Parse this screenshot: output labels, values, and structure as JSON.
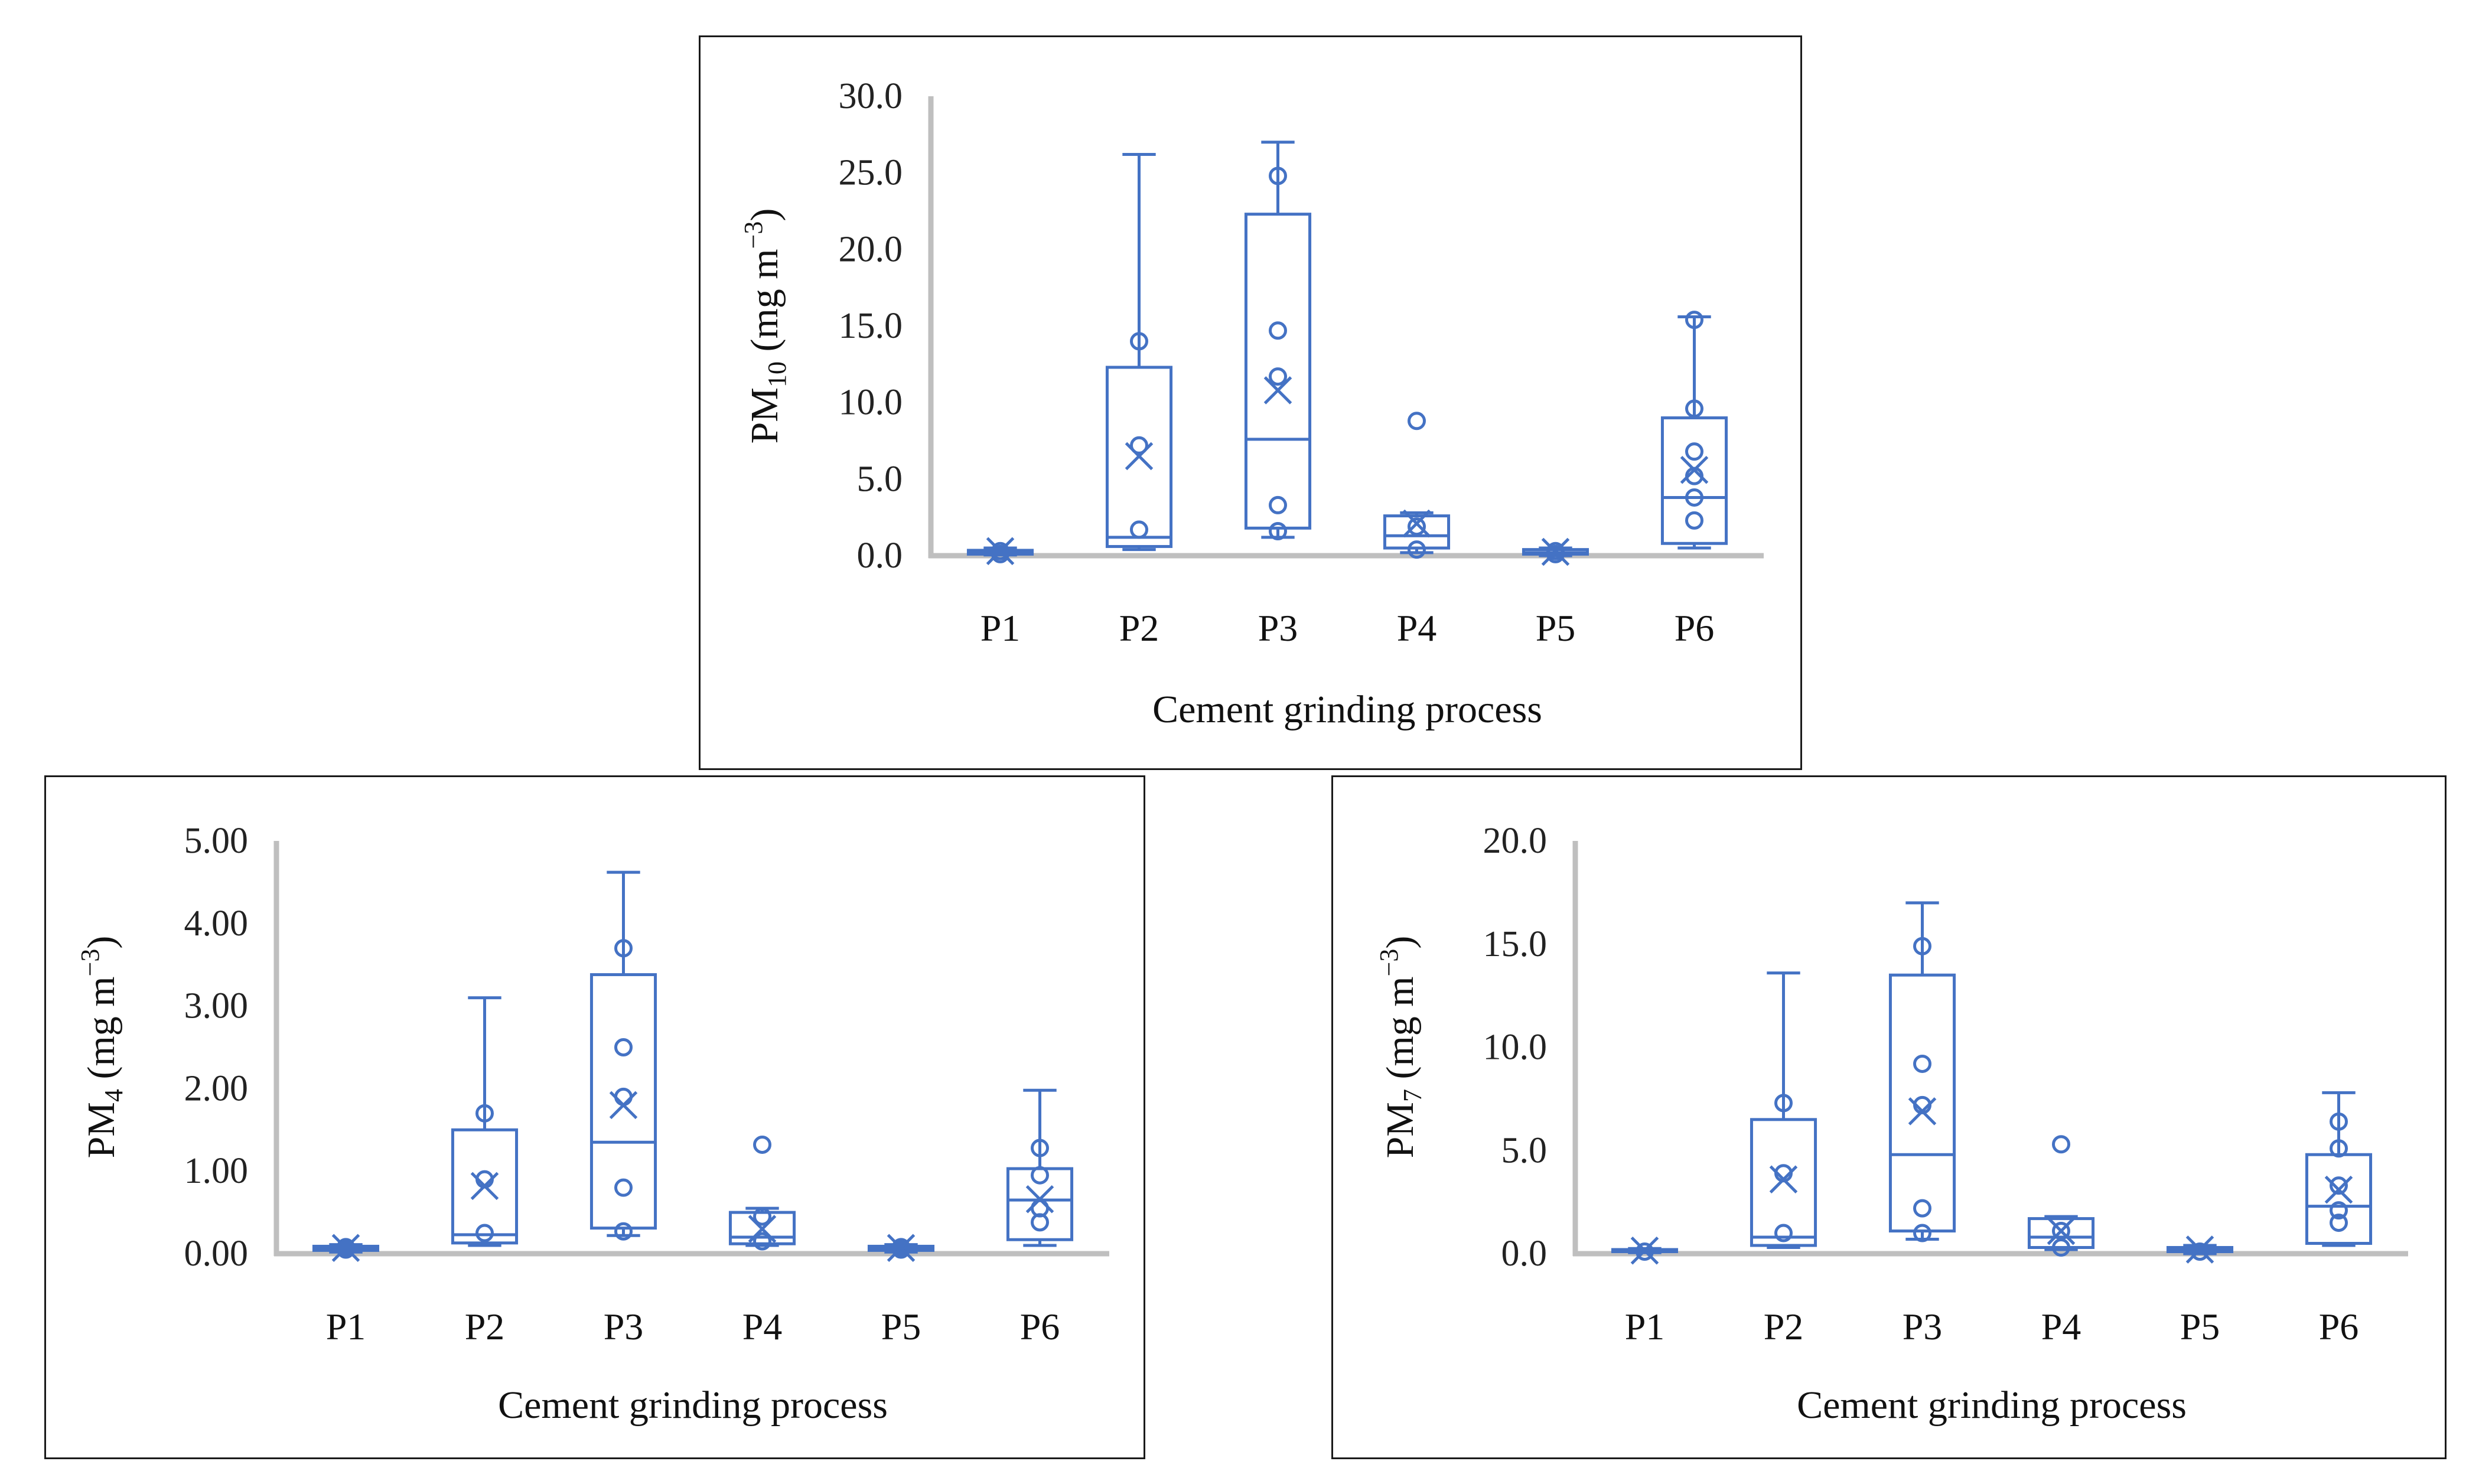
{
  "chart_data": [
    {
      "type": "box",
      "id": "pm10",
      "y_title": {
        "base": "PM",
        "sub": "10",
        "units_prefix": " (mg m",
        "units_exp": "−3",
        "units_suffix": ")"
      },
      "x_title": "Cement grinding process",
      "categories": [
        "P1",
        "P2",
        "P3",
        "P4",
        "P5",
        "P6"
      ],
      "ylim": [
        0,
        30
      ],
      "yticks": [
        0,
        5,
        10,
        15,
        20,
        25,
        30
      ],
      "ytick_labels": [
        "0.0",
        "5.0",
        "10.0",
        "15.0",
        "20.0",
        "25.0",
        "30.0"
      ],
      "color": "#4472c4",
      "boxes": [
        {
          "min": 0.05,
          "q1": 0.1,
          "median": 0.2,
          "q3": 0.35,
          "max": 0.5,
          "mean": 0.3,
          "points": [
            0.1,
            0.3
          ]
        },
        {
          "min": 0.4,
          "q1": 0.6,
          "median": 1.2,
          "q3": 12.3,
          "max": 26.2,
          "mean": 6.5,
          "points": [
            1.7,
            7.2,
            14.0
          ]
        },
        {
          "min": 1.2,
          "q1": 1.8,
          "median": 7.6,
          "q3": 22.3,
          "max": 27.0,
          "mean": 10.8,
          "points": [
            1.6,
            3.3,
            11.7,
            14.7,
            24.8
          ]
        },
        {
          "min": 0.2,
          "q1": 0.5,
          "median": 1.3,
          "q3": 2.6,
          "max": 2.8,
          "mean": 2.1,
          "points": [
            0.4,
            1.9,
            8.8
          ]
        },
        {
          "min": 0.0,
          "q1": 0.1,
          "median": 0.2,
          "q3": 0.4,
          "max": 0.5,
          "mean": 0.25,
          "points": [
            0.1,
            0.3
          ]
        },
        {
          "min": 0.5,
          "q1": 0.8,
          "median": 3.8,
          "q3": 9.0,
          "max": 15.6,
          "mean": 5.6,
          "points": [
            2.3,
            3.8,
            5.2,
            6.8,
            9.6,
            15.4
          ]
        }
      ]
    },
    {
      "type": "box",
      "id": "pm4",
      "y_title": {
        "base": "PM",
        "sub": "4",
        "units_prefix": " (mg m",
        "units_exp": "−3",
        "units_suffix": ")"
      },
      "x_title": "Cement grinding process",
      "categories": [
        "P1",
        "P2",
        "P3",
        "P4",
        "P5",
        "P6"
      ],
      "ylim": [
        0,
        5
      ],
      "yticks": [
        0,
        1,
        2,
        3,
        4,
        5
      ],
      "ytick_labels": [
        "0.00",
        "1.00",
        "2.00",
        "3.00",
        "4.00",
        "5.00"
      ],
      "color": "#4472c4",
      "boxes": [
        {
          "min": 0.02,
          "q1": 0.04,
          "median": 0.06,
          "q3": 0.09,
          "max": 0.11,
          "mean": 0.07,
          "points": [
            0.05,
            0.08
          ]
        },
        {
          "min": 0.1,
          "q1": 0.13,
          "median": 0.23,
          "q3": 1.5,
          "max": 3.1,
          "mean": 0.82,
          "points": [
            0.25,
            0.9,
            1.7
          ]
        },
        {
          "min": 0.22,
          "q1": 0.31,
          "median": 1.35,
          "q3": 3.38,
          "max": 4.62,
          "mean": 1.8,
          "points": [
            0.27,
            0.8,
            1.9,
            2.5,
            3.7
          ]
        },
        {
          "min": 0.1,
          "q1": 0.12,
          "median": 0.2,
          "q3": 0.5,
          "max": 0.55,
          "mean": 0.3,
          "points": [
            0.15,
            0.45,
            1.32
          ]
        },
        {
          "min": 0.02,
          "q1": 0.04,
          "median": 0.06,
          "q3": 0.09,
          "max": 0.11,
          "mean": 0.07,
          "points": [
            0.05,
            0.08
          ]
        },
        {
          "min": 0.1,
          "q1": 0.17,
          "median": 0.65,
          "q3": 1.03,
          "max": 1.98,
          "mean": 0.66,
          "points": [
            0.38,
            0.55,
            0.95,
            1.28
          ]
        }
      ]
    },
    {
      "type": "box",
      "id": "pm7",
      "y_title": {
        "base": "PM",
        "sub": "7",
        "units_prefix": " (mg m",
        "units_exp": "−3",
        "units_suffix": ")"
      },
      "x_title": "Cement grinding process",
      "categories": [
        "P1",
        "P2",
        "P3",
        "P4",
        "P5",
        "P6"
      ],
      "ylim": [
        0,
        20
      ],
      "yticks": [
        0,
        5,
        10,
        15,
        20
      ],
      "ytick_labels": [
        "0.0",
        "5.0",
        "10.0",
        "15.0",
        "20.0"
      ],
      "color": "#4472c4",
      "boxes": [
        {
          "min": 0.05,
          "q1": 0.1,
          "median": 0.15,
          "q3": 0.2,
          "max": 0.25,
          "mean": 0.15,
          "points": [
            0.1
          ]
        },
        {
          "min": 0.3,
          "q1": 0.4,
          "median": 0.8,
          "q3": 6.5,
          "max": 13.6,
          "mean": 3.6,
          "points": [
            1.0,
            3.9,
            7.3
          ]
        },
        {
          "min": 0.7,
          "q1": 1.1,
          "median": 4.8,
          "q3": 13.5,
          "max": 17.0,
          "mean": 6.9,
          "points": [
            1.0,
            2.2,
            7.2,
            9.2,
            14.9
          ]
        },
        {
          "min": 0.2,
          "q1": 0.3,
          "median": 0.8,
          "q3": 1.7,
          "max": 1.8,
          "mean": 1.1,
          "points": [
            0.3,
            1.1,
            5.3
          ]
        },
        {
          "min": 0.0,
          "q1": 0.1,
          "median": 0.2,
          "q3": 0.3,
          "max": 0.4,
          "mean": 0.2,
          "points": [
            0.1
          ]
        },
        {
          "min": 0.4,
          "q1": 0.5,
          "median": 2.3,
          "q3": 4.8,
          "max": 7.8,
          "mean": 3.1,
          "points": [
            1.5,
            2.1,
            3.3,
            5.1,
            6.4
          ]
        }
      ]
    }
  ]
}
